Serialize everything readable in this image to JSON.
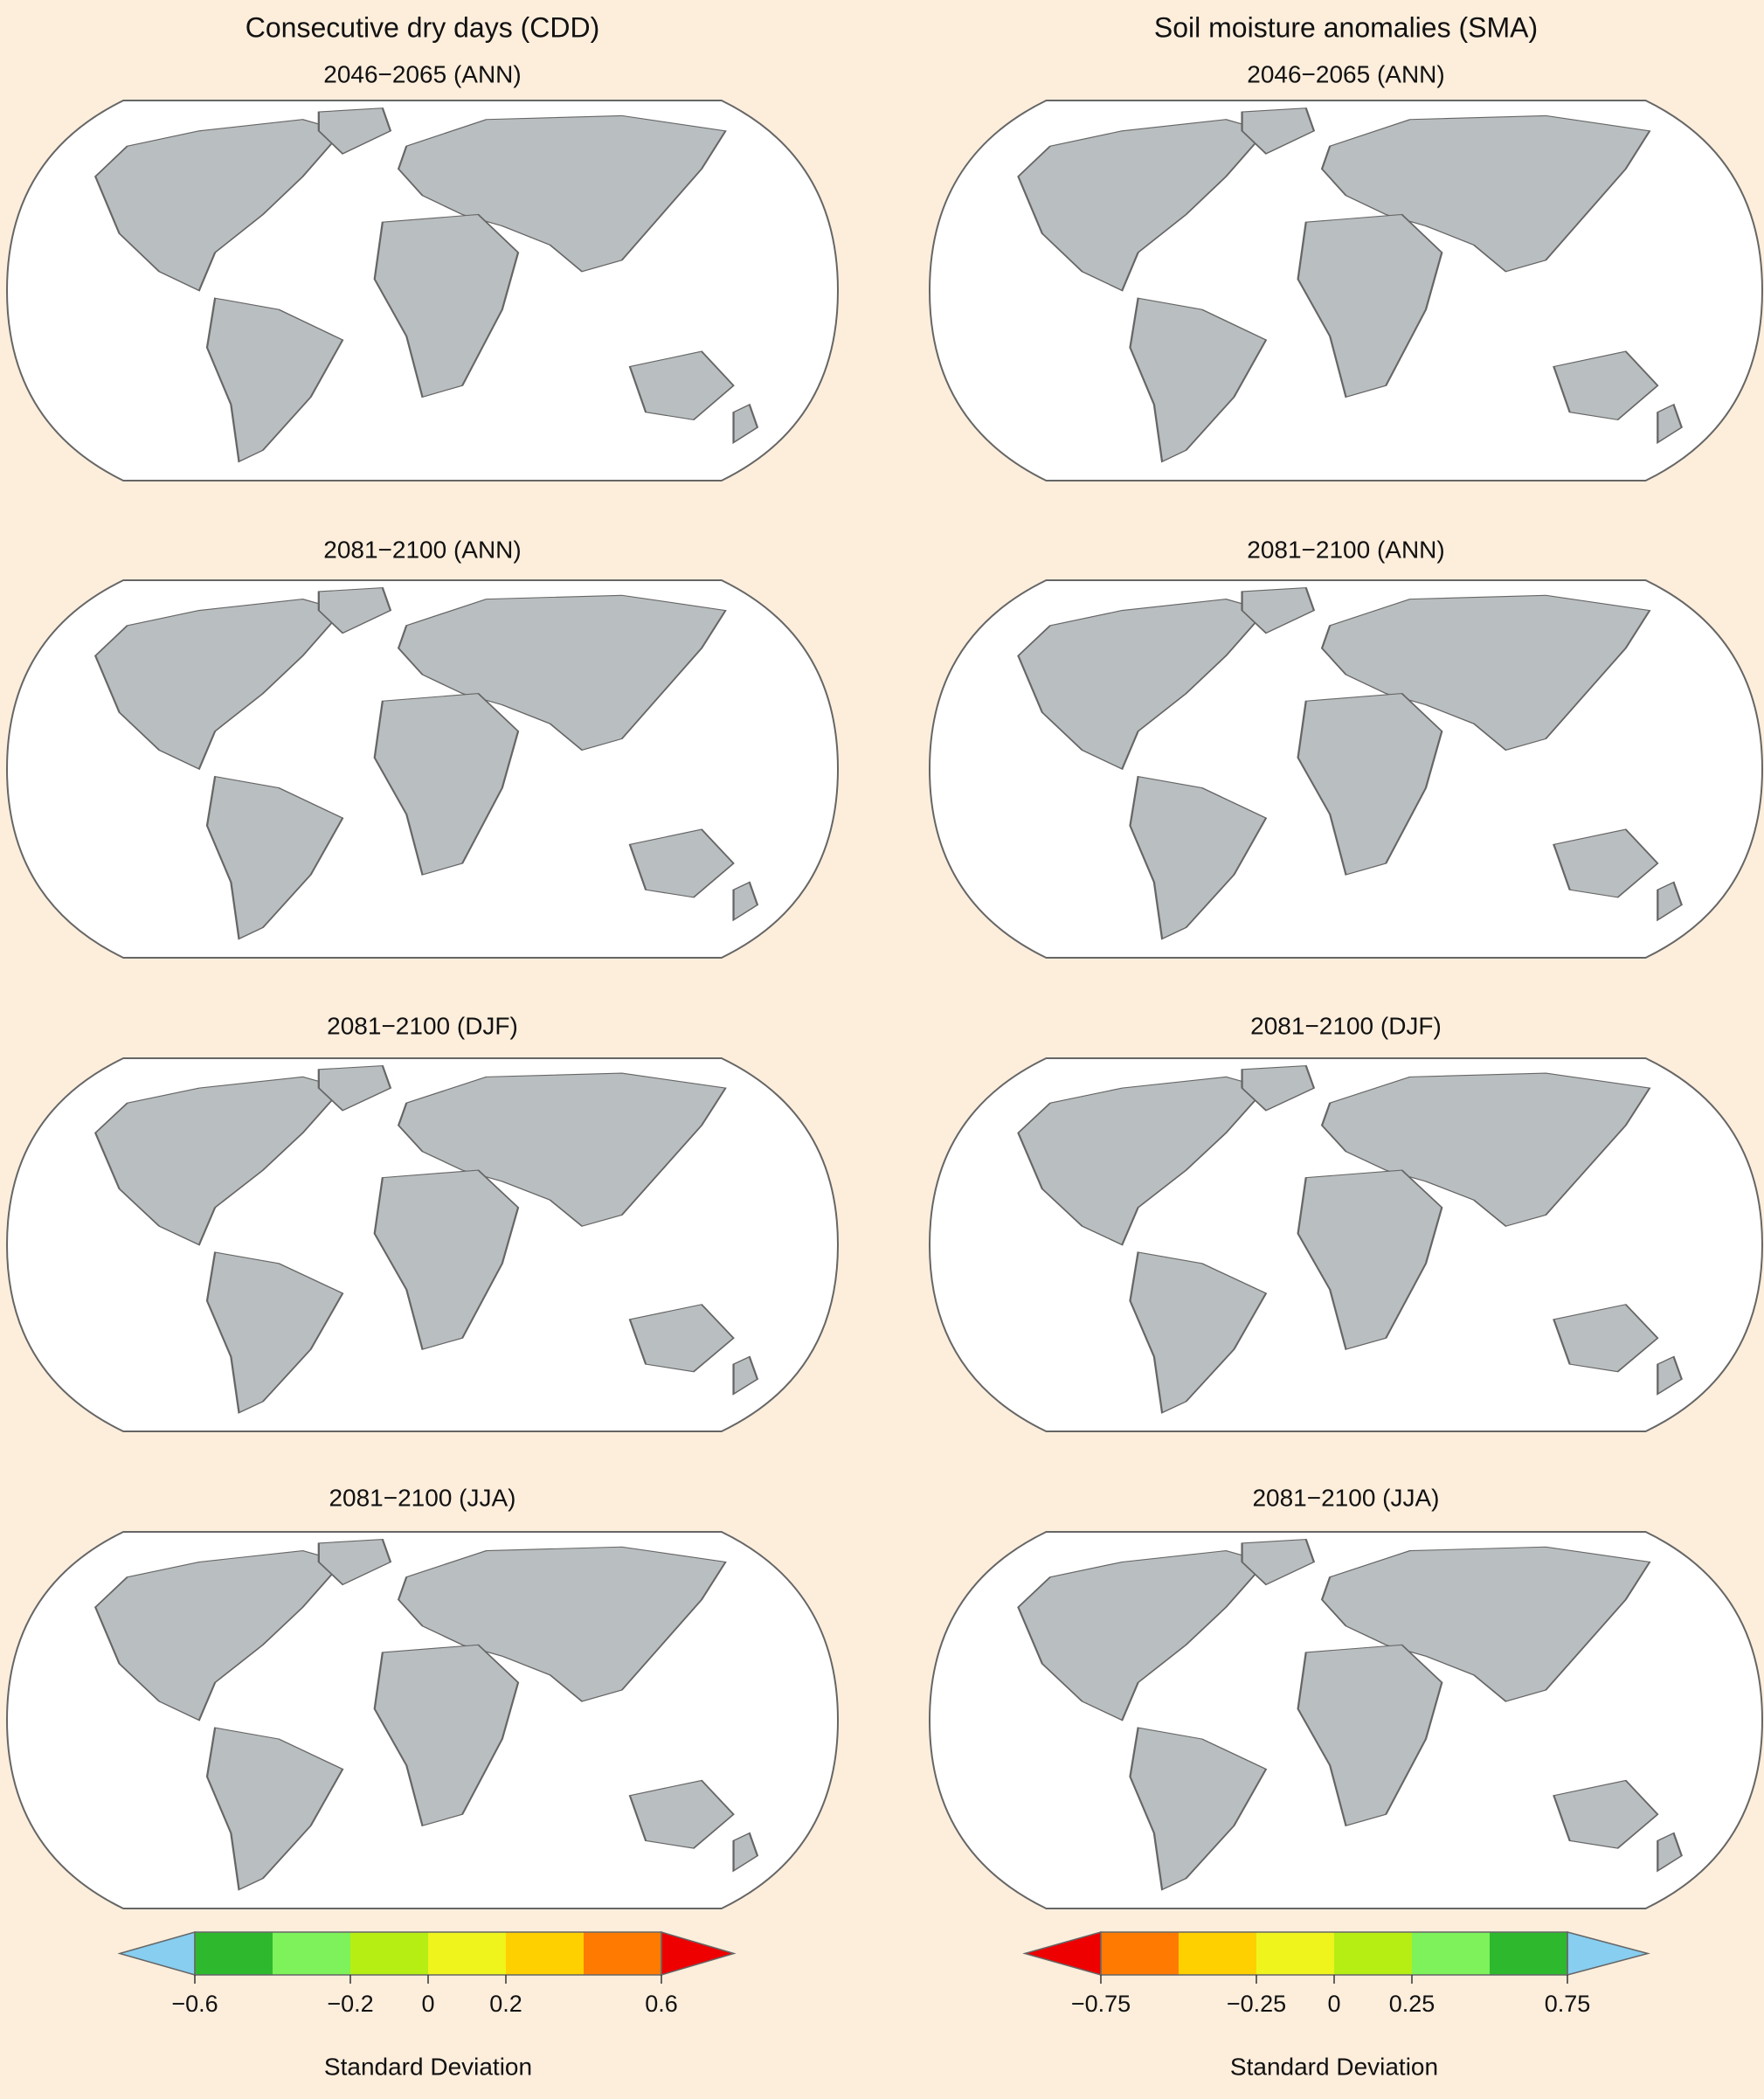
{
  "columns": [
    {
      "title": "Consecutive dry days (CDD)",
      "panels": [
        "2046−2065 (ANN)",
        "2081−2100 (ANN)",
        "2081−2100 (DJF)",
        "2081−2100 (JJA)"
      ],
      "colorbar": {
        "colors": [
          "#87cef0",
          "#2eb82e",
          "#7df25a",
          "#b6ee14",
          "#eef41c",
          "#ffd000",
          "#ff7a00",
          "#ee0000"
        ],
        "boundaries": [
          -0.6,
          -0.4,
          -0.2,
          0,
          0.2,
          0.4,
          0.6
        ],
        "ticks": [
          {
            "value": -0.6,
            "label": "−0.6"
          },
          {
            "value": -0.2,
            "label": "−0.2"
          },
          0,
          0.2,
          0.6
        ],
        "label": "Standard Deviation"
      }
    },
    {
      "title": "Soil moisture anomalies (SMA)",
      "panels": [
        "2046−2065 (ANN)",
        "2081−2100 (ANN)",
        "2081−2100 (DJF)",
        "2081−2100 (JJA)"
      ],
      "colorbar": {
        "colors": [
          "#ee0000",
          "#ff7a00",
          "#ffd000",
          "#eef41c",
          "#b6ee14",
          "#7df25a",
          "#2eb82e",
          "#87cef0"
        ],
        "boundaries": [
          -0.75,
          -0.5,
          -0.25,
          0,
          0.25,
          0.5,
          0.75
        ],
        "ticks": [
          {
            "value": -0.75,
            "label": "−0.75"
          },
          {
            "value": -0.25,
            "label": "−0.25"
          },
          0,
          0.25,
          0.75
        ],
        "label": "Standard Deviation"
      }
    }
  ]
}
